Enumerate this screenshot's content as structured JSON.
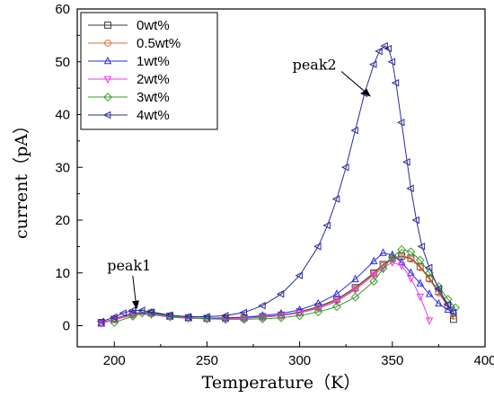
{
  "chart_data": {
    "type": "line",
    "title": "",
    "xlabel": "Temperature（K）",
    "ylabel": "current（pA）",
    "xlim": [
      180,
      400
    ],
    "ylim": [
      -4,
      60
    ],
    "xticks": [
      200,
      250,
      300,
      350,
      400
    ],
    "yticks": [
      0,
      10,
      20,
      30,
      40,
      50,
      60
    ],
    "legend_position": "top-left",
    "series": [
      {
        "name": "0wt%",
        "color": "#3a3a3a",
        "marker": "square",
        "x": [
          193,
          200,
          210,
          220,
          230,
          240,
          250,
          260,
          270,
          280,
          290,
          300,
          310,
          320,
          330,
          340,
          345,
          350,
          355,
          360,
          365,
          370,
          375,
          380,
          383
        ],
        "y": [
          0.6,
          1.2,
          2.2,
          2.4,
          1.8,
          1.5,
          1.4,
          1.4,
          1.5,
          1.7,
          2.0,
          2.6,
          3.6,
          5.0,
          7.2,
          10.0,
          11.6,
          12.8,
          13.2,
          12.8,
          11.2,
          9.0,
          6.5,
          3.8,
          1.2
        ]
      },
      {
        "name": "0.5wt%",
        "color": "#e06a3a",
        "marker": "circle",
        "x": [
          193,
          200,
          210,
          220,
          230,
          240,
          250,
          260,
          270,
          280,
          290,
          300,
          310,
          320,
          330,
          340,
          345,
          350,
          355,
          360,
          365,
          370,
          375,
          380,
          383
        ],
        "y": [
          0.5,
          1.1,
          2.0,
          2.3,
          1.7,
          1.5,
          1.4,
          1.4,
          1.5,
          1.6,
          1.9,
          2.5,
          3.4,
          4.8,
          7.0,
          9.8,
          11.4,
          12.6,
          13.0,
          12.6,
          11.0,
          8.8,
          6.2,
          3.6,
          1.8
        ]
      },
      {
        "name": "1wt%",
        "color": "#2a2aee",
        "marker": "triangle-up",
        "x": [
          193,
          200,
          210,
          220,
          230,
          240,
          250,
          260,
          270,
          280,
          290,
          300,
          310,
          320,
          330,
          340,
          345,
          350,
          355,
          360,
          365,
          370,
          375,
          380,
          383
        ],
        "y": [
          0.4,
          1.3,
          2.4,
          2.5,
          1.8,
          1.5,
          1.4,
          1.5,
          1.6,
          1.9,
          2.3,
          3.0,
          4.2,
          6.0,
          8.8,
          12.2,
          13.8,
          13.4,
          12.0,
          10.0,
          8.0,
          6.0,
          4.2,
          3.0,
          2.8
        ]
      },
      {
        "name": "2wt%",
        "color": "#e040e0",
        "marker": "triangle-down",
        "x": [
          193,
          200,
          210,
          220,
          230,
          240,
          250,
          260,
          270,
          280,
          290,
          300,
          310,
          320,
          330,
          340,
          345,
          350,
          355,
          360,
          365,
          370
        ],
        "y": [
          0.5,
          1.2,
          2.2,
          2.1,
          1.6,
          1.4,
          1.3,
          1.3,
          1.4,
          1.6,
          1.9,
          2.4,
          3.3,
          4.6,
          6.8,
          9.6,
          11.0,
          12.0,
          11.4,
          9.0,
          5.5,
          1.0
        ]
      },
      {
        "name": "3wt%",
        "color": "#3a9a2a",
        "marker": "diamond",
        "x": [
          200,
          210,
          215,
          220,
          230,
          240,
          250,
          260,
          270,
          280,
          290,
          300,
          310,
          320,
          330,
          340,
          345,
          350,
          355,
          360,
          365,
          370,
          375,
          380,
          384
        ],
        "y": [
          0.6,
          1.8,
          2.4,
          2.3,
          1.8,
          1.5,
          1.3,
          1.2,
          1.2,
          1.3,
          1.5,
          1.9,
          2.6,
          3.6,
          5.4,
          8.4,
          10.8,
          13.0,
          14.4,
          14.0,
          12.4,
          10.0,
          7.4,
          5.0,
          3.4
        ]
      },
      {
        "name": "4wt%",
        "color": "#2a2a9a",
        "marker": "triangle-left",
        "x": [
          193,
          200,
          205,
          210,
          215,
          220,
          230,
          240,
          250,
          260,
          270,
          280,
          290,
          300,
          310,
          315,
          320,
          325,
          330,
          335,
          340,
          343,
          346,
          348,
          350,
          352,
          355,
          358,
          360,
          363,
          366,
          370,
          375,
          380,
          383
        ],
        "y": [
          0.8,
          1.6,
          2.4,
          2.9,
          2.9,
          2.6,
          2.0,
          1.7,
          1.7,
          1.9,
          2.5,
          3.8,
          6.0,
          9.5,
          15.0,
          19.0,
          24.0,
          30.0,
          37.0,
          44.0,
          49.5,
          52.0,
          53.0,
          52.5,
          50.0,
          46.0,
          38.5,
          31.0,
          26.0,
          20.0,
          15.0,
          11.0,
          7.0,
          4.0,
          2.5
        ]
      }
    ],
    "annotations": [
      {
        "text": "peak1",
        "text_x": 208,
        "text_y": 10.5,
        "target_x": 212,
        "target_y": 3.2
      },
      {
        "text": "peak2",
        "text_x": 308,
        "text_y": 48.5,
        "target_x": 338,
        "target_y": 43.5
      }
    ]
  }
}
